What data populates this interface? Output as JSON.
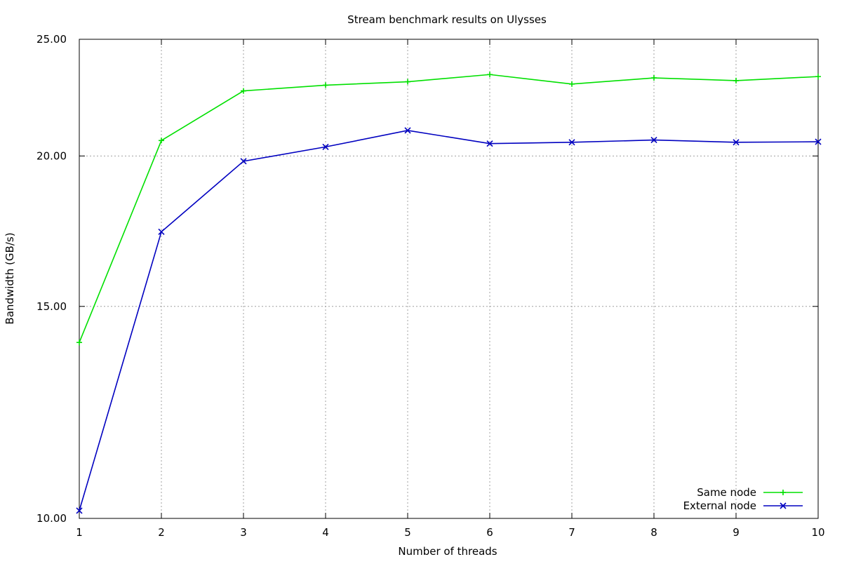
{
  "chart_data": {
    "type": "line",
    "title": "Stream benchmark results on Ulysses",
    "xlabel": "Number of threads",
    "ylabel": "Bandwidth (GB/s)",
    "x": [
      1,
      2,
      3,
      4,
      5,
      6,
      7,
      8,
      9,
      10
    ],
    "xlim": [
      1,
      10
    ],
    "ylim": [
      10,
      25
    ],
    "yscale": "log",
    "xticks": [
      "1",
      "2",
      "3",
      "4",
      "5",
      "6",
      "7",
      "8",
      "9",
      "10"
    ],
    "yticks": [
      {
        "value": 10,
        "label": "10.00"
      },
      {
        "value": 15,
        "label": "15.00"
      },
      {
        "value": 20,
        "label": "20.00"
      },
      {
        "value": 25,
        "label": "25.00"
      }
    ],
    "grid": true,
    "legend_position": "bottom-right",
    "series": [
      {
        "name": "Same node",
        "color": "#00e000",
        "marker": "plus",
        "values": [
          14.0,
          20.6,
          22.65,
          22.9,
          23.05,
          23.37,
          22.95,
          23.22,
          23.1,
          23.28
        ]
      },
      {
        "name": "External node",
        "color": "#0000c0",
        "marker": "cross",
        "values": [
          10.15,
          17.3,
          19.8,
          20.35,
          21.0,
          20.48,
          20.53,
          20.62,
          20.53,
          20.55
        ]
      }
    ]
  }
}
